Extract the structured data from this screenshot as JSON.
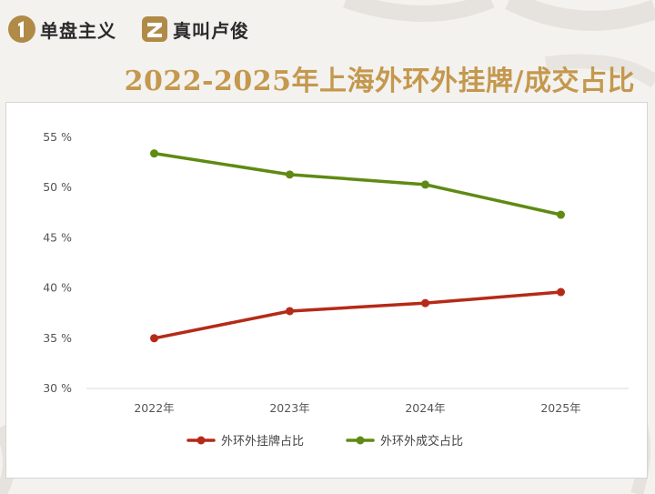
{
  "header": {
    "brand1": {
      "name": "单盘主义",
      "icon": "digit-one-logo-icon",
      "color": "#b08a47"
    },
    "brand2": {
      "name": "真叫卢俊",
      "icon": "letter-z-logo-icon",
      "color": "#b08a47"
    }
  },
  "title": "2022-2025年上海外环外挂牌/成交占比",
  "colors": {
    "title": "#c4984e",
    "series1": "#b52a18",
    "series2": "#5f8a13"
  },
  "chart_data": {
    "type": "line",
    "title": "2022-2025年上海外环外挂牌/成交占比",
    "categories": [
      "2022年",
      "2023年",
      "2024年",
      "2025年"
    ],
    "y_ticks": [
      "30 %",
      "35 %",
      "40 %",
      "45 %",
      "50 %",
      "55 %"
    ],
    "ylim": [
      30,
      55
    ],
    "y_unit": "%",
    "grid": false,
    "legend_position": "bottom",
    "series": [
      {
        "name": "外环外挂牌占比",
        "color": "#b52a18",
        "values": [
          35.0,
          37.7,
          38.5,
          39.6
        ]
      },
      {
        "name": "外环外成交占比",
        "color": "#5f8a13",
        "values": [
          53.4,
          51.3,
          50.3,
          47.3
        ]
      }
    ]
  }
}
